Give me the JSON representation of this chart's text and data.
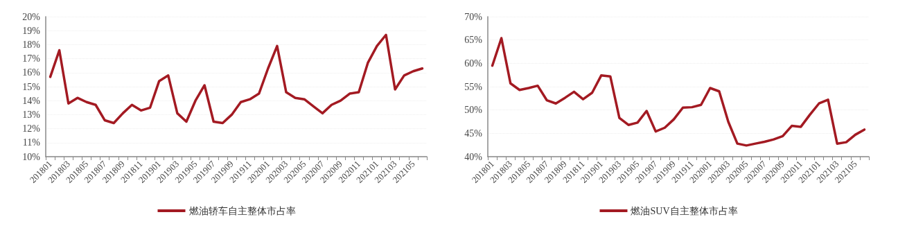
{
  "chart_data": [
    {
      "type": "line",
      "categories": [
        "201801",
        null,
        "201803",
        null,
        "201805",
        null,
        "201807",
        null,
        "201809",
        null,
        "201811",
        null,
        "201901",
        null,
        "201903",
        null,
        "201905",
        null,
        "201907",
        null,
        "201909",
        null,
        "201911",
        null,
        "202001",
        null,
        "202003",
        null,
        "202005",
        null,
        "202007",
        null,
        "202009",
        null,
        "202011",
        null,
        "202101",
        null,
        "202103",
        null,
        "202105",
        null
      ],
      "series": [
        {
          "name": "燃油轿车自主整体市占率",
          "color": "#a31a22",
          "values": [
            15.7,
            17.6,
            13.8,
            14.2,
            13.9,
            13.7,
            12.6,
            12.4,
            13.1,
            13.7,
            13.3,
            13.5,
            15.4,
            15.8,
            13.1,
            12.5,
            14.0,
            15.1,
            12.5,
            12.4,
            13.0,
            13.9,
            14.1,
            14.5,
            16.3,
            17.9,
            14.6,
            14.2,
            14.1,
            13.6,
            13.1,
            13.7,
            14.0,
            14.5,
            14.6,
            16.7,
            17.9,
            18.7,
            14.8,
            15.8,
            16.1,
            16.3
          ]
        }
      ],
      "ylim": [
        10,
        20
      ],
      "yticks": [
        {
          "value": 10,
          "label": "10%"
        },
        {
          "value": 11,
          "label": "11%"
        },
        {
          "value": 12,
          "label": "12%"
        },
        {
          "value": 13,
          "label": "13%"
        },
        {
          "value": 14,
          "label": "14%"
        },
        {
          "value": 15,
          "label": "15%"
        },
        {
          "value": 16,
          "label": "16%"
        },
        {
          "value": 17,
          "label": "17%"
        },
        {
          "value": 18,
          "label": "18%"
        },
        {
          "value": 19,
          "label": "19%"
        },
        {
          "value": 20,
          "label": "20%"
        }
      ],
      "grid": "y",
      "legend": "bottom",
      "marker": "none",
      "line_style": "solid"
    },
    {
      "type": "line",
      "categories": [
        "201801",
        null,
        "201803",
        null,
        "201805",
        null,
        "201807",
        null,
        "201809",
        null,
        "201811",
        null,
        "201901",
        null,
        "201903",
        null,
        "201905",
        null,
        "201907",
        null,
        "201909",
        null,
        "201911",
        null,
        "202001",
        null,
        "202003",
        null,
        "202005",
        null,
        "202007",
        null,
        "202009",
        null,
        "202011",
        null,
        "202101",
        null,
        "202103",
        null,
        "202105",
        null
      ],
      "series": [
        {
          "name": "燃油SUV自主整体市占率",
          "color": "#a31a22",
          "values": [
            59.5,
            65.4,
            55.7,
            54.3,
            54.7,
            55.2,
            52.1,
            51.4,
            52.6,
            53.9,
            52.3,
            53.7,
            57.4,
            57.2,
            48.3,
            46.8,
            47.3,
            49.8,
            45.4,
            46.2,
            48.0,
            50.5,
            50.6,
            51.1,
            54.7,
            54.0,
            47.5,
            42.8,
            42.4,
            42.8,
            43.2,
            43.7,
            44.4,
            46.6,
            46.4,
            49.0,
            51.4,
            52.2,
            42.8,
            43.1,
            44.7,
            45.8
          ]
        }
      ],
      "ylim": [
        40,
        70
      ],
      "yticks": [
        {
          "value": 40,
          "label": "40%"
        },
        {
          "value": 45,
          "label": "45%"
        },
        {
          "value": 50,
          "label": "50%"
        },
        {
          "value": 55,
          "label": "55%"
        },
        {
          "value": 60,
          "label": "60%"
        },
        {
          "value": 65,
          "label": "65%"
        },
        {
          "value": 70,
          "label": "70%"
        }
      ],
      "grid": "y",
      "legend": "bottom",
      "marker": "none",
      "line_style": "solid"
    }
  ]
}
